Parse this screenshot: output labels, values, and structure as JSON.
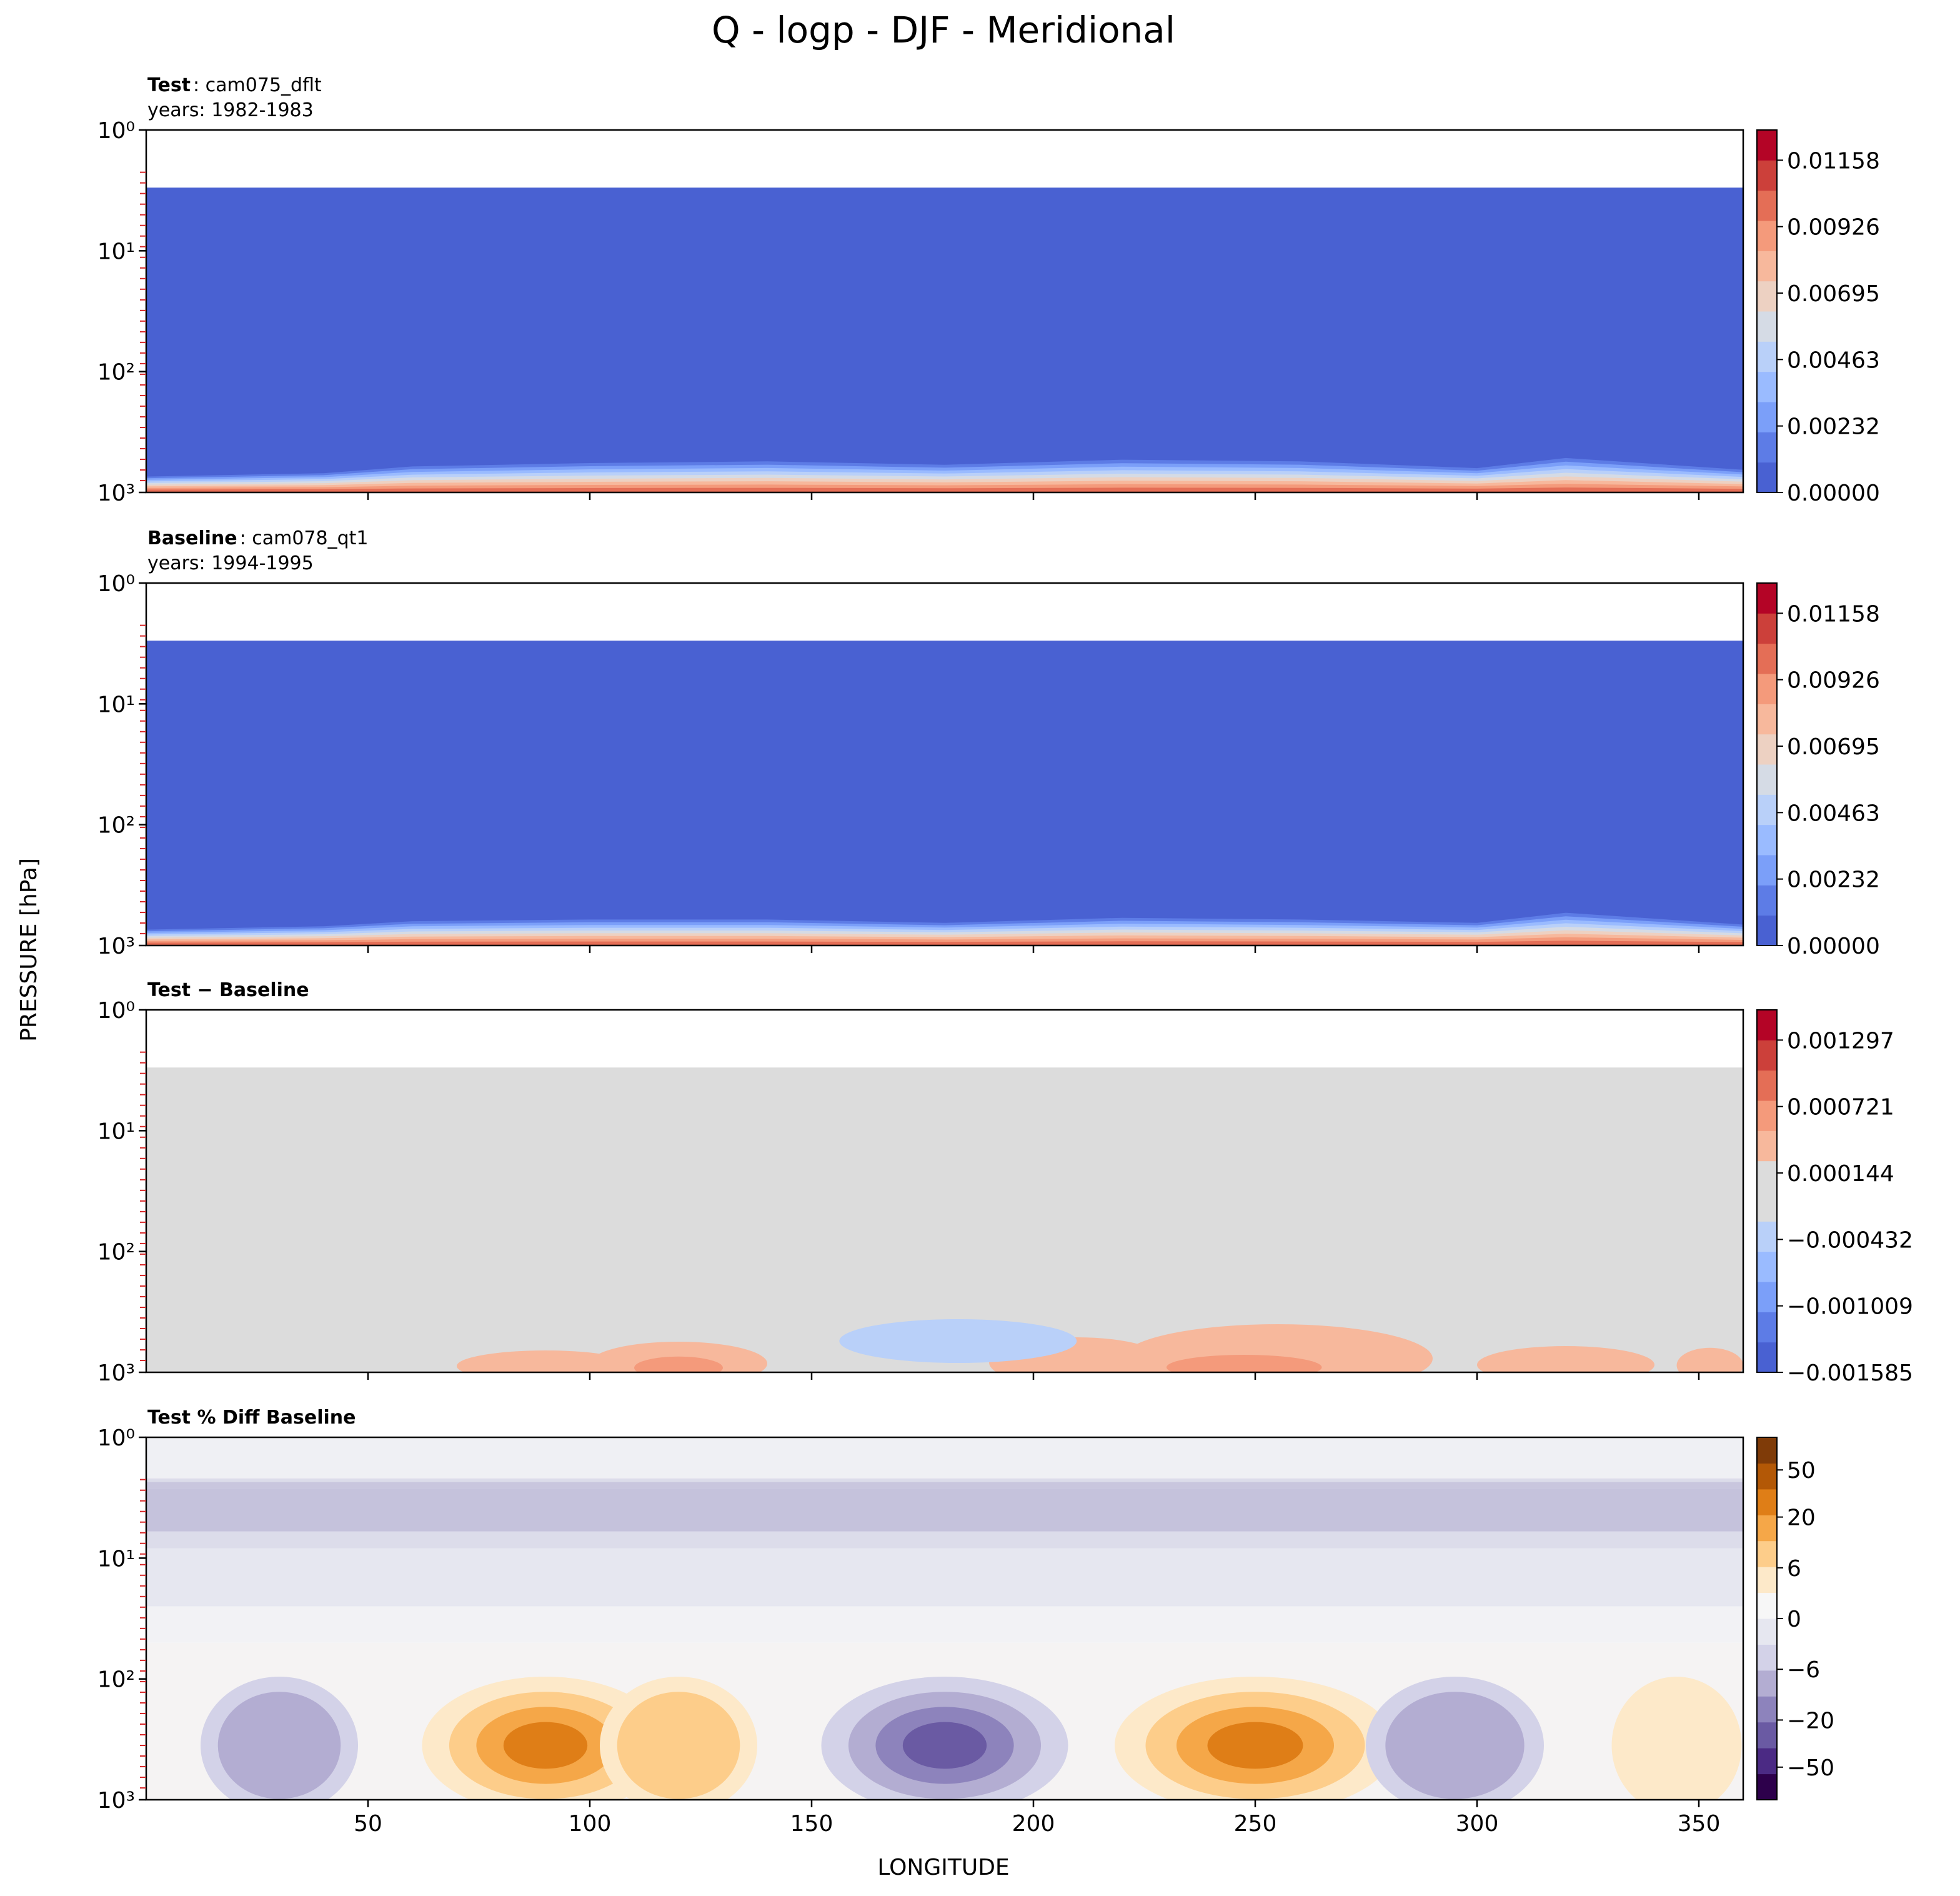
{
  "figure": {
    "title": "Q - logp - DJF - Meridional",
    "xlabel": "LONGITUDE",
    "ylabel": "PRESSURE [hPa]"
  },
  "chart_data": [
    {
      "type": "heatmap",
      "label_bold": "Test",
      "label_rest": ": cam075_dflt",
      "subtitle": "years: 1982-1983",
      "xlim": [
        0,
        360
      ],
      "ylim_log10": [
        3,
        0
      ],
      "yticks": [
        "10⁰",
        "10¹",
        "10²",
        "10³"
      ],
      "xticks": [
        "50",
        "100",
        "150",
        "200",
        "250",
        "300",
        "350"
      ],
      "top_data_pressure_hPa": 3,
      "field": "bottom-heavy moisture, near-zero aloft",
      "colorbar": {
        "ticks": [
          "0.01158",
          "0.00926",
          "0.00695",
          "0.00463",
          "0.00232",
          "0.00000"
        ],
        "colors": [
          "#4961d2",
          "#5d7ce6",
          "#7b9ff9",
          "#9abbff",
          "#b9d0f9",
          "#d5dbe5",
          "#edd1c2",
          "#f7b89c",
          "#f49a7b",
          "#e46e56",
          "#cc403a",
          "#b40426"
        ]
      },
      "surface_profile": [
        {
          "lon": 0,
          "v": 0.3
        },
        {
          "lon": 40,
          "v": 0.4
        },
        {
          "lon": 60,
          "v": 0.6
        },
        {
          "lon": 100,
          "v": 0.7
        },
        {
          "lon": 140,
          "v": 0.75
        },
        {
          "lon": 180,
          "v": 0.65
        },
        {
          "lon": 220,
          "v": 0.8
        },
        {
          "lon": 260,
          "v": 0.75
        },
        {
          "lon": 300,
          "v": 0.55
        },
        {
          "lon": 320,
          "v": 0.85
        },
        {
          "lon": 360,
          "v": 0.5
        }
      ]
    },
    {
      "type": "heatmap",
      "label_bold": "Baseline",
      "label_rest": ": cam078_qt1",
      "subtitle": "years: 1994-1995",
      "xlim": [
        0,
        360
      ],
      "ylim_log10": [
        3,
        0
      ],
      "yticks": [
        "10⁰",
        "10¹",
        "10²",
        "10³"
      ],
      "xticks": [
        "50",
        "100",
        "150",
        "200",
        "250",
        "300",
        "350"
      ],
      "top_data_pressure_hPa": 3,
      "field": "bottom-heavy moisture, near-zero aloft",
      "colorbar": {
        "ticks": [
          "0.01158",
          "0.00926",
          "0.00695",
          "0.00463",
          "0.00232",
          "0.00000"
        ],
        "colors": [
          "#4961d2",
          "#5d7ce6",
          "#7b9ff9",
          "#9abbff",
          "#b9d0f9",
          "#d5dbe5",
          "#edd1c2",
          "#f7b89c",
          "#f49a7b",
          "#e46e56",
          "#cc403a",
          "#b40426"
        ]
      },
      "surface_profile": [
        {
          "lon": 0,
          "v": 0.3
        },
        {
          "lon": 40,
          "v": 0.4
        },
        {
          "lon": 60,
          "v": 0.55
        },
        {
          "lon": 100,
          "v": 0.6
        },
        {
          "lon": 140,
          "v": 0.6
        },
        {
          "lon": 180,
          "v": 0.5
        },
        {
          "lon": 220,
          "v": 0.65
        },
        {
          "lon": 260,
          "v": 0.6
        },
        {
          "lon": 300,
          "v": 0.5
        },
        {
          "lon": 320,
          "v": 0.8
        },
        {
          "lon": 360,
          "v": 0.45
        }
      ]
    },
    {
      "type": "heatmap",
      "label_bold": "Test − Baseline",
      "label_rest": "",
      "subtitle": "",
      "xlim": [
        0,
        360
      ],
      "ylim_log10": [
        3,
        0
      ],
      "yticks": [
        "10⁰",
        "10¹",
        "10²",
        "10³"
      ],
      "xticks": [
        "50",
        "100",
        "150",
        "200",
        "250",
        "300",
        "350"
      ],
      "top_data_pressure_hPa": 3,
      "field": "mostly neutral difference, small positive anomalies near surface",
      "colorbar": {
        "ticks": [
          "0.001297",
          "0.000721",
          "0.000144",
          "−0.000432",
          "−0.001009",
          "−0.001585"
        ],
        "colors": [
          "#4961d2",
          "#5d7ce6",
          "#7b9ff9",
          "#9abbff",
          "#b9d0f9",
          "#dcdcdc",
          "#dcdcdc",
          "#f7b89c",
          "#f49a7b",
          "#e46e56",
          "#cc403a",
          "#b40426"
        ]
      }
    },
    {
      "type": "heatmap",
      "label_bold": "Test % Diff Baseline",
      "label_rest": "",
      "subtitle": "",
      "xlim": [
        0,
        360
      ],
      "ylim_log10": [
        3,
        0
      ],
      "yticks": [
        "10⁰",
        "10¹",
        "10²",
        "10³"
      ],
      "xticks": [
        "50",
        "100",
        "150",
        "200",
        "250",
        "300",
        "350"
      ],
      "field": "percent difference; negative (purple) aloft, mixed near surface",
      "colorbar": {
        "ticks": [
          "50",
          "20",
          "6",
          "0",
          "−6",
          "−20",
          "−50"
        ],
        "colors": [
          "#2d004b",
          "#4b2a84",
          "#6a5aa3",
          "#8d83bc",
          "#b3add2",
          "#d3d2e8",
          "#e6e7f0",
          "#f7f7f7",
          "#fde9c9",
          "#fdcd8a",
          "#f5a748",
          "#df7e17",
          "#b35806",
          "#7f3b08"
        ]
      },
      "anomalies": [
        {
          "lon": 30,
          "v": -12
        },
        {
          "lon": 90,
          "v": 25
        },
        {
          "lon": 120,
          "v": 12
        },
        {
          "lon": 180,
          "v": -25
        },
        {
          "lon": 250,
          "v": 30
        },
        {
          "lon": 295,
          "v": -15
        },
        {
          "lon": 345,
          "v": 8
        }
      ]
    }
  ]
}
